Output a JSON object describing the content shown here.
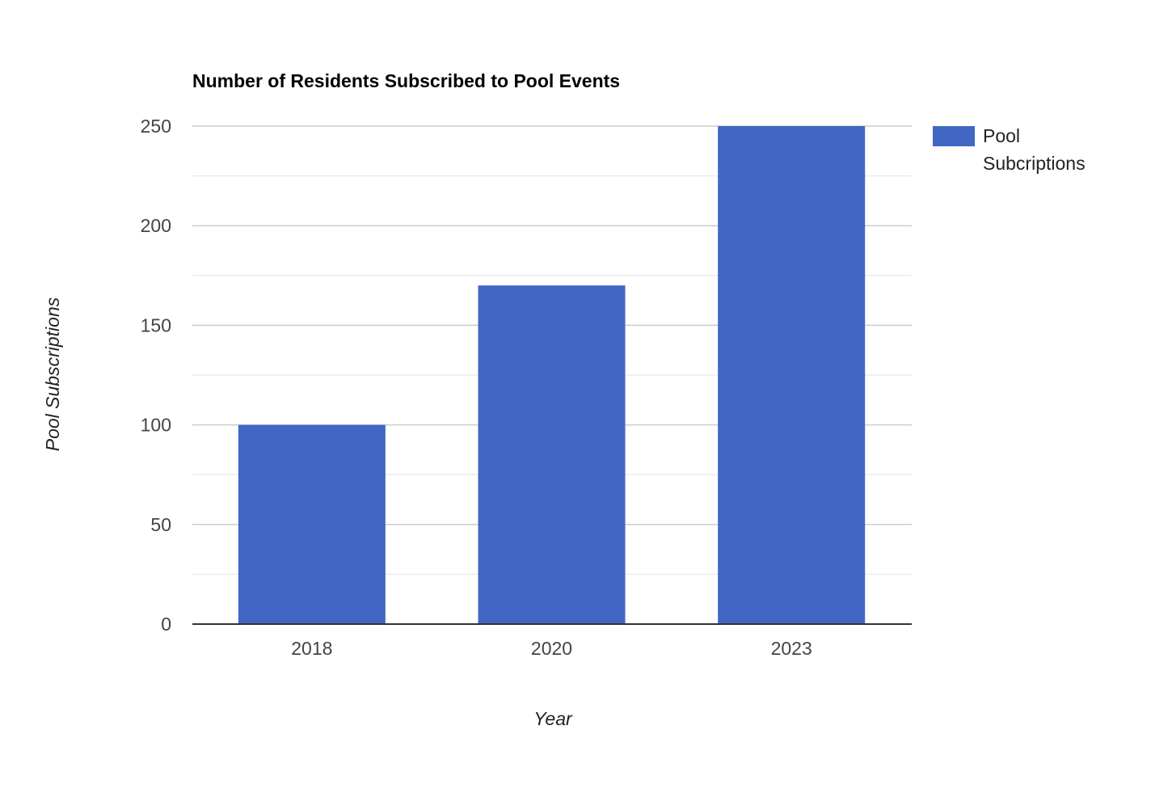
{
  "chart_data": {
    "type": "bar",
    "title": "Number of Residents Subscribed to Pool Events",
    "xlabel": "Year",
    "ylabel": "Pool Subscriptions",
    "categories": [
      "2018",
      "2020",
      "2023"
    ],
    "series": [
      {
        "name": "Pool Subcriptions",
        "name_lines": [
          "Pool",
          "Subcriptions"
        ],
        "values": [
          100,
          170,
          250
        ],
        "color": "#4166c4"
      }
    ],
    "ylim": [
      0,
      250
    ],
    "yticks": [
      0,
      50,
      100,
      150,
      200,
      250
    ],
    "ytick_labels": [
      "0",
      "50",
      "100",
      "150",
      "200",
      "250"
    ],
    "minor_gridlines": true,
    "grid": true,
    "legend": "right",
    "colors": {
      "major_grid": "#cccccc",
      "minor_grid": "#ebebeb",
      "baseline": "#333333"
    }
  }
}
